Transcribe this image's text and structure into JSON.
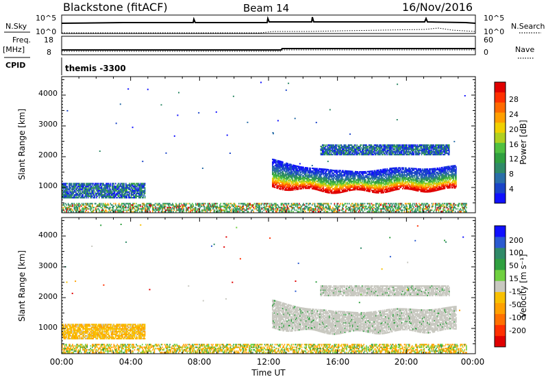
{
  "header": {
    "station": "Blackstone (fitACF)",
    "beam": "Beam 14",
    "date": "16/Nov/2016"
  },
  "status_panels": {
    "nsky_label": "N.Sky",
    "nsky_ticks": [
      "10^5",
      "10^0"
    ],
    "nsearch_label": "N.Search",
    "nsearch_ticks": [
      "10^5",
      "10^0"
    ],
    "freq_label": "Freq.",
    "freq_unit": "[MHz]",
    "freq_ticks": [
      "18",
      "8"
    ],
    "nave_label": "Nave",
    "nave_ticks": [
      "60",
      "0"
    ],
    "cpid_label": "CPID",
    "cpid_value": "themis -3300"
  },
  "chart_data": [
    {
      "type": "heatmap",
      "name": "power",
      "ylabel": "Slant Range [km]",
      "y_ticks": [
        "1000",
        "2000",
        "3000",
        "4000"
      ],
      "ylim": [
        180,
        4600
      ],
      "xlim": [
        0,
        24
      ],
      "colorbar": {
        "label": "Power [dB]",
        "ticks": [
          "4",
          "8",
          "12",
          "16",
          "20",
          "24",
          "28"
        ],
        "colors": [
          "#1010ff",
          "#1a44c8",
          "#2a6ea8",
          "#2f8a68",
          "#30a040",
          "#50c040",
          "#b0d020",
          "#f0d000",
          "#ff9f00",
          "#ff6a00",
          "#ff3000",
          "#e00000"
        ]
      },
      "echo_regions": [
        {
          "t": [
            0.0,
            4.8
          ],
          "r": [
            650,
            1150
          ],
          "level": "low"
        },
        {
          "t": [
            12.2,
            22.9
          ],
          "r": [
            850,
            1900
          ],
          "level": "high"
        },
        {
          "t": [
            15.0,
            22.5
          ],
          "r": [
            2050,
            2400
          ],
          "level": "low"
        },
        {
          "t": [
            0.0,
            23.5
          ],
          "r": [
            200,
            500
          ],
          "level": "ground"
        }
      ]
    },
    {
      "type": "heatmap",
      "name": "velocity",
      "ylabel": "Slant Range [km]",
      "y_ticks": [
        "1000",
        "2000",
        "3000",
        "4000"
      ],
      "ylim": [
        180,
        4600
      ],
      "xlim": [
        0,
        24
      ],
      "colorbar": {
        "label": "Velocity [m s⁻¹]",
        "ticks": [
          "200",
          "100",
          "50",
          "15",
          "-15",
          "-50",
          "-100",
          "-200"
        ],
        "colors": [
          "#1010ff",
          "#2a5ad0",
          "#2f8a68",
          "#30a040",
          "#70d040",
          "#c8c8c0",
          "#f8c000",
          "#ffa000",
          "#ff7000",
          "#ff3000",
          "#e00000"
        ]
      },
      "echo_regions": [
        {
          "t": [
            0.0,
            4.8
          ],
          "r": [
            650,
            1150
          ],
          "level": "negative"
        },
        {
          "t": [
            12.2,
            22.9
          ],
          "r": [
            850,
            2000
          ],
          "level": "zero"
        },
        {
          "t": [
            15.0,
            22.5
          ],
          "r": [
            2050,
            2400
          ],
          "level": "zero"
        },
        {
          "t": [
            0.0,
            23.5
          ],
          "r": [
            200,
            500
          ],
          "level": "mixed"
        }
      ]
    }
  ],
  "time_axis": {
    "ticks": [
      "00:00",
      "04:00",
      "08:00",
      "12:00",
      "16:00",
      "20:00",
      "00:00"
    ],
    "label": "Time UT"
  }
}
